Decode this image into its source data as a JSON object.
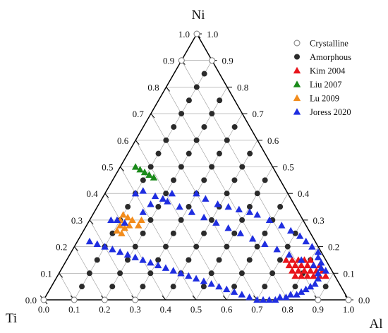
{
  "chart_data": {
    "type": "ternary-scatter",
    "axes": {
      "top": "Ni",
      "left": "Ti",
      "right": "Al"
    },
    "ticks": [
      "0.0",
      "0.1",
      "0.2",
      "0.3",
      "0.4",
      "0.5",
      "0.6",
      "0.7",
      "0.8",
      "0.9",
      "1.0"
    ],
    "grid": true,
    "legend_position": "top-right",
    "series": [
      {
        "name": "Crystalline",
        "marker": "circle-open",
        "color": "#777777",
        "points": [
          [
            1.0,
            0.0
          ],
          [
            0.9,
            0.0
          ],
          [
            0.8,
            0.0
          ],
          [
            0.0,
            0.9
          ],
          [
            0.1,
            0.9
          ],
          [
            0.0,
            1.0
          ],
          [
            0.7,
            0.0
          ],
          [
            0.1,
            0.0
          ],
          [
            0.0,
            0.0
          ]
        ]
      },
      {
        "name": "Amorphous",
        "marker": "circle",
        "color": "#2b2b2b",
        "points": [
          [
            0.1,
            0.8
          ],
          [
            0.2,
            0.7
          ],
          [
            0.1,
            0.7
          ],
          [
            0.2,
            0.6
          ],
          [
            0.3,
            0.6
          ],
          [
            0.1,
            0.6
          ],
          [
            0.2,
            0.5
          ],
          [
            0.3,
            0.5
          ],
          [
            0.4,
            0.5
          ],
          [
            0.1,
            0.5
          ],
          [
            0.2,
            0.4
          ],
          [
            0.3,
            0.4
          ],
          [
            0.4,
            0.4
          ],
          [
            0.5,
            0.4
          ],
          [
            0.1,
            0.4
          ],
          [
            0.2,
            0.3
          ],
          [
            0.3,
            0.3
          ],
          [
            0.4,
            0.3
          ],
          [
            0.5,
            0.3
          ],
          [
            0.6,
            0.3
          ],
          [
            0.1,
            0.3
          ],
          [
            0.2,
            0.2
          ],
          [
            0.3,
            0.2
          ],
          [
            0.4,
            0.2
          ],
          [
            0.5,
            0.2
          ],
          [
            0.6,
            0.2
          ],
          [
            0.7,
            0.2
          ],
          [
            0.1,
            0.2
          ],
          [
            0.2,
            0.1
          ],
          [
            0.3,
            0.1
          ],
          [
            0.4,
            0.1
          ],
          [
            0.5,
            0.1
          ],
          [
            0.6,
            0.1
          ],
          [
            0.7,
            0.1
          ],
          [
            0.8,
            0.1
          ],
          [
            0.1,
            0.1
          ],
          [
            0.05,
            0.85
          ],
          [
            0.15,
            0.75
          ],
          [
            0.05,
            0.75
          ],
          [
            0.25,
            0.65
          ],
          [
            0.15,
            0.65
          ],
          [
            0.05,
            0.65
          ],
          [
            0.35,
            0.55
          ],
          [
            0.25,
            0.55
          ],
          [
            0.15,
            0.55
          ],
          [
            0.05,
            0.55
          ],
          [
            0.45,
            0.45
          ],
          [
            0.35,
            0.45
          ],
          [
            0.25,
            0.45
          ],
          [
            0.15,
            0.45
          ],
          [
            0.05,
            0.45
          ],
          [
            0.55,
            0.35
          ],
          [
            0.45,
            0.35
          ],
          [
            0.35,
            0.35
          ],
          [
            0.25,
            0.35
          ],
          [
            0.15,
            0.35
          ],
          [
            0.05,
            0.35
          ],
          [
            0.65,
            0.25
          ],
          [
            0.55,
            0.25
          ],
          [
            0.45,
            0.25
          ],
          [
            0.35,
            0.25
          ],
          [
            0.25,
            0.25
          ],
          [
            0.15,
            0.25
          ],
          [
            0.05,
            0.25
          ],
          [
            0.75,
            0.15
          ],
          [
            0.65,
            0.15
          ],
          [
            0.55,
            0.15
          ],
          [
            0.45,
            0.15
          ],
          [
            0.35,
            0.15
          ],
          [
            0.25,
            0.15
          ],
          [
            0.15,
            0.15
          ],
          [
            0.05,
            0.15
          ],
          [
            0.85,
            0.05
          ],
          [
            0.75,
            0.05
          ],
          [
            0.65,
            0.05
          ],
          [
            0.55,
            0.05
          ],
          [
            0.45,
            0.05
          ],
          [
            0.35,
            0.05
          ],
          [
            0.25,
            0.05
          ],
          [
            0.15,
            0.05
          ],
          [
            0.05,
            0.05
          ]
        ]
      },
      {
        "name": "Kim 2004",
        "marker": "triangle",
        "color": "#e8141b",
        "points": [
          [
            0.05,
            0.15
          ],
          [
            0.07,
            0.15
          ],
          [
            0.09,
            0.15
          ],
          [
            0.11,
            0.15
          ],
          [
            0.13,
            0.15
          ],
          [
            0.03,
            0.13
          ],
          [
            0.05,
            0.13
          ],
          [
            0.07,
            0.13
          ],
          [
            0.09,
            0.13
          ],
          [
            0.11,
            0.13
          ],
          [
            0.13,
            0.13
          ],
          [
            0.03,
            0.11
          ],
          [
            0.05,
            0.11
          ],
          [
            0.07,
            0.11
          ],
          [
            0.09,
            0.11
          ],
          [
            0.11,
            0.11
          ],
          [
            0.13,
            0.11
          ],
          [
            0.03,
            0.09
          ],
          [
            0.05,
            0.09
          ],
          [
            0.07,
            0.09
          ],
          [
            0.09,
            0.09
          ],
          [
            0.11,
            0.09
          ],
          [
            0.13,
            0.09
          ]
        ]
      },
      {
        "name": "Liu 2007",
        "marker": "triangle",
        "color": "#1a8a1a",
        "points": [
          [
            0.45,
            0.5
          ],
          [
            0.44,
            0.49
          ],
          [
            0.43,
            0.48
          ],
          [
            0.42,
            0.47
          ],
          [
            0.41,
            0.46
          ]
        ]
      },
      {
        "name": "Lu 2009",
        "marker": "triangle",
        "color": "#f28c1c",
        "points": [
          [
            0.6,
            0.3
          ],
          [
            0.58,
            0.32
          ],
          [
            0.57,
            0.31
          ],
          [
            0.56,
            0.3
          ],
          [
            0.61,
            0.28
          ],
          [
            0.6,
            0.27
          ],
          [
            0.58,
            0.28
          ],
          [
            0.55,
            0.28
          ],
          [
            0.53,
            0.3
          ],
          [
            0.63,
            0.26
          ],
          [
            0.62,
            0.25
          ]
        ]
      },
      {
        "name": "Joress 2020",
        "marker": "triangle",
        "color": "#1f2ee0",
        "points": [
          [
            0.63,
            0.3
          ],
          [
            0.61,
            0.3
          ],
          [
            0.59,
            0.29
          ],
          [
            0.51,
            0.33
          ],
          [
            0.47,
            0.36
          ],
          [
            0.42,
            0.38
          ],
          [
            0.38,
            0.4
          ],
          [
            0.3,
            0.4
          ],
          [
            0.28,
            0.38
          ],
          [
            0.25,
            0.36
          ],
          [
            0.22,
            0.35
          ],
          [
            0.19,
            0.34
          ],
          [
            0.16,
            0.33
          ],
          [
            0.14,
            0.32
          ],
          [
            0.11,
            0.3
          ],
          [
            0.08,
            0.28
          ],
          [
            0.06,
            0.26
          ],
          [
            0.04,
            0.24
          ],
          [
            0.03,
            0.22
          ],
          [
            0.02,
            0.2
          ],
          [
            0.01,
            0.18
          ],
          [
            0.02,
            0.16
          ],
          [
            0.02,
            0.14
          ],
          [
            0.03,
            0.12
          ],
          [
            0.05,
            0.1
          ],
          [
            0.06,
            0.08
          ],
          [
            0.08,
            0.06
          ],
          [
            0.1,
            0.05
          ],
          [
            0.12,
            0.04
          ],
          [
            0.14,
            0.03
          ],
          [
            0.16,
            0.02
          ],
          [
            0.18,
            0.02
          ],
          [
            0.2,
            0.01
          ],
          [
            0.22,
            0.01
          ],
          [
            0.24,
            0.0
          ],
          [
            0.26,
            0.0
          ],
          [
            0.28,
            0.0
          ],
          [
            0.3,
            0.0
          ],
          [
            0.32,
            0.01
          ],
          [
            0.34,
            0.02
          ],
          [
            0.36,
            0.03
          ],
          [
            0.38,
            0.04
          ],
          [
            0.4,
            0.05
          ],
          [
            0.42,
            0.06
          ],
          [
            0.44,
            0.07
          ],
          [
            0.46,
            0.08
          ],
          [
            0.48,
            0.09
          ],
          [
            0.5,
            0.1
          ],
          [
            0.52,
            0.11
          ],
          [
            0.54,
            0.12
          ],
          [
            0.56,
            0.13
          ],
          [
            0.58,
            0.14
          ],
          [
            0.6,
            0.15
          ],
          [
            0.62,
            0.16
          ],
          [
            0.64,
            0.17
          ],
          [
            0.66,
            0.18
          ],
          [
            0.68,
            0.19
          ],
          [
            0.7,
            0.2
          ],
          [
            0.72,
            0.21
          ],
          [
            0.74,
            0.22
          ],
          [
            0.5,
            0.4
          ],
          [
            0.47,
            0.41
          ],
          [
            0.44,
            0.39
          ],
          [
            0.41,
            0.37
          ],
          [
            0.38,
            0.35
          ],
          [
            0.35,
            0.33
          ],
          [
            0.32,
            0.31
          ],
          [
            0.29,
            0.29
          ],
          [
            0.26,
            0.27
          ],
          [
            0.23,
            0.25
          ],
          [
            0.2,
            0.23
          ],
          [
            0.17,
            0.21
          ],
          [
            0.14,
            0.19
          ],
          [
            0.11,
            0.17
          ],
          [
            0.08,
            0.15
          ],
          [
            0.05,
            0.13
          ],
          [
            0.02,
            0.11
          ]
        ]
      }
    ]
  }
}
